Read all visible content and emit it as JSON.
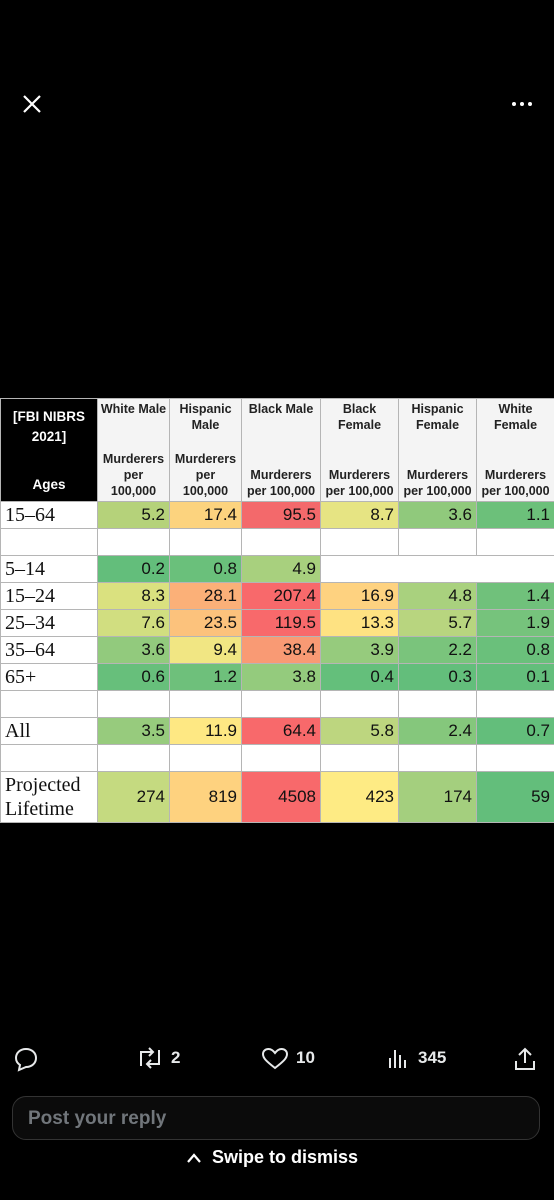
{
  "table": {
    "corner_title": "[FBI NIBRS 2021]",
    "corner_label": "Ages",
    "columns": [
      {
        "group": "White Male",
        "unit": "Murderers per 100,000"
      },
      {
        "group": "Hispanic Male",
        "unit": "Murderers per 100,000"
      },
      {
        "group": "Black Male",
        "unit": "Murderers per 100,000"
      },
      {
        "group": "Black Female",
        "unit": "Murderers per 100,000"
      },
      {
        "group": "Hispanic Female",
        "unit": "Murderers per 100,000"
      },
      {
        "group": "White Female",
        "unit": "Murderers per 100,000"
      }
    ],
    "rows": [
      {
        "label": "15–64",
        "values": [
          5.2,
          17.4,
          95.5,
          8.7,
          3.6,
          1.1
        ]
      },
      {
        "label": "5–14",
        "values": [
          0.2,
          0.8,
          4.9
        ]
      },
      {
        "label": "15–24",
        "values": [
          8.3,
          28.1,
          207.4,
          16.9,
          4.8,
          1.4
        ]
      },
      {
        "label": "25–34",
        "values": [
          7.6,
          23.5,
          119.5,
          13.3,
          5.7,
          1.9
        ]
      },
      {
        "label": "35–64",
        "values": [
          3.6,
          9.4,
          38.4,
          3.9,
          2.2,
          0.8
        ]
      },
      {
        "label": "65+",
        "values": [
          0.6,
          1.2,
          3.8,
          0.4,
          0.3,
          0.1
        ]
      },
      {
        "label": "All",
        "values": [
          3.5,
          11.9,
          64.4,
          5.8,
          2.4,
          0.7
        ]
      },
      {
        "label": "Projected Lifetime",
        "values": [
          274,
          819,
          4508,
          423,
          174,
          59
        ]
      }
    ]
  },
  "actions": {
    "retweets": 2,
    "likes": 10,
    "views": 345
  },
  "reply": {
    "placeholder": "Post your reply"
  },
  "dismiss": {
    "label": "Swipe to dismiss"
  }
}
